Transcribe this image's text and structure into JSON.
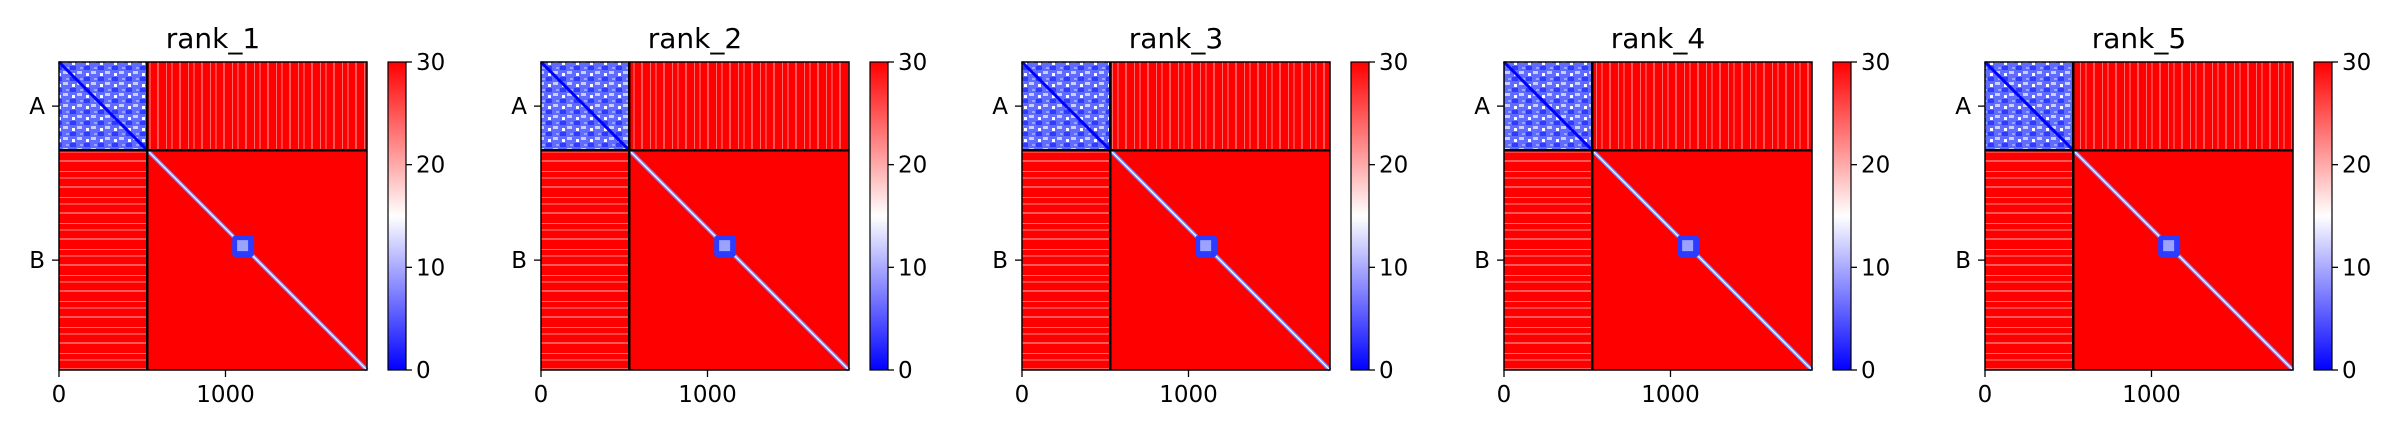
{
  "chart_data": [
    {
      "type": "heatmap",
      "title": "rank_1",
      "xlabel": "",
      "ylabel": "",
      "matrix_size": 1850,
      "chain_boundary": 530,
      "chains": [
        {
          "label": "A",
          "start": 0,
          "end": 530
        },
        {
          "label": "B",
          "start": 530,
          "end": 1850
        }
      ],
      "xticks": [
        {
          "value": 0,
          "label": "0"
        },
        {
          "value": 1000,
          "label": "1000"
        }
      ],
      "yticks": [
        {
          "value": 265,
          "label": "A"
        },
        {
          "value": 1190,
          "label": "B"
        }
      ],
      "colorbar": {
        "min": 0,
        "max": 30,
        "ticks": [
          {
            "value": 0,
            "label": "0"
          },
          {
            "value": 10,
            "label": "10"
          },
          {
            "value": 20,
            "label": "20"
          },
          {
            "value": 30,
            "label": "30"
          }
        ],
        "colormap": "bwr"
      },
      "features": {
        "chain_a_intra": "low (blue, 0-10)",
        "inter_chain": "high (red, ~30)",
        "chain_b_intra": "high (red) except diagonal",
        "diagonal": "low (blue)",
        "blue_cluster": {
          "x": 1100,
          "y": 1100
        }
      }
    },
    {
      "type": "heatmap",
      "title": "rank_2",
      "xlabel": "",
      "ylabel": "",
      "matrix_size": 1850,
      "chain_boundary": 530,
      "chains": [
        {
          "label": "A",
          "start": 0,
          "end": 530
        },
        {
          "label": "B",
          "start": 530,
          "end": 1850
        }
      ],
      "xticks": [
        {
          "value": 0,
          "label": "0"
        },
        {
          "value": 1000,
          "label": "1000"
        }
      ],
      "yticks": [
        {
          "value": 265,
          "label": "A"
        },
        {
          "value": 1190,
          "label": "B"
        }
      ],
      "colorbar": {
        "min": 0,
        "max": 30,
        "ticks": [
          {
            "value": 0,
            "label": "0"
          },
          {
            "value": 10,
            "label": "10"
          },
          {
            "value": 20,
            "label": "20"
          },
          {
            "value": 30,
            "label": "30"
          }
        ],
        "colormap": "bwr"
      }
    },
    {
      "type": "heatmap",
      "title": "rank_3",
      "xlabel": "",
      "ylabel": "",
      "matrix_size": 1850,
      "chain_boundary": 530,
      "chains": [
        {
          "label": "A",
          "start": 0,
          "end": 530
        },
        {
          "label": "B",
          "start": 530,
          "end": 1850
        }
      ],
      "xticks": [
        {
          "value": 0,
          "label": "0"
        },
        {
          "value": 1000,
          "label": "1000"
        }
      ],
      "yticks": [
        {
          "value": 265,
          "label": "A"
        },
        {
          "value": 1190,
          "label": "B"
        }
      ],
      "colorbar": {
        "min": 0,
        "max": 30,
        "ticks": [
          {
            "value": 0,
            "label": "0"
          },
          {
            "value": 10,
            "label": "10"
          },
          {
            "value": 20,
            "label": "20"
          },
          {
            "value": 30,
            "label": "30"
          }
        ],
        "colormap": "bwr"
      }
    },
    {
      "type": "heatmap",
      "title": "rank_4",
      "xlabel": "",
      "ylabel": "",
      "matrix_size": 1850,
      "chain_boundary": 530,
      "chains": [
        {
          "label": "A",
          "start": 0,
          "end": 530
        },
        {
          "label": "B",
          "start": 530,
          "end": 1850
        }
      ],
      "xticks": [
        {
          "value": 0,
          "label": "0"
        },
        {
          "value": 1000,
          "label": "1000"
        }
      ],
      "yticks": [
        {
          "value": 265,
          "label": "A"
        },
        {
          "value": 1190,
          "label": "B"
        }
      ],
      "colorbar": {
        "min": 0,
        "max": 30,
        "ticks": [
          {
            "value": 0,
            "label": "0"
          },
          {
            "value": 10,
            "label": "10"
          },
          {
            "value": 20,
            "label": "20"
          },
          {
            "value": 30,
            "label": "30"
          }
        ],
        "colormap": "bwr"
      }
    },
    {
      "type": "heatmap",
      "title": "rank_5",
      "xlabel": "",
      "ylabel": "",
      "matrix_size": 1850,
      "chain_boundary": 530,
      "chains": [
        {
          "label": "A",
          "start": 0,
          "end": 530
        },
        {
          "label": "B",
          "start": 530,
          "end": 1850
        }
      ],
      "xticks": [
        {
          "value": 0,
          "label": "0"
        },
        {
          "value": 1000,
          "label": "1000"
        }
      ],
      "yticks": [
        {
          "value": 265,
          "label": "A"
        },
        {
          "value": 1190,
          "label": "B"
        }
      ],
      "colorbar": {
        "min": 0,
        "max": 30,
        "ticks": [
          {
            "value": 0,
            "label": "0"
          },
          {
            "value": 10,
            "label": "10"
          },
          {
            "value": 20,
            "label": "20"
          },
          {
            "value": 30,
            "label": "30"
          }
        ],
        "colormap": "bwr"
      }
    }
  ],
  "colors": {
    "low": "#0000ff",
    "mid": "#ffffff",
    "high": "#ff0000",
    "divider": "#000000"
  }
}
